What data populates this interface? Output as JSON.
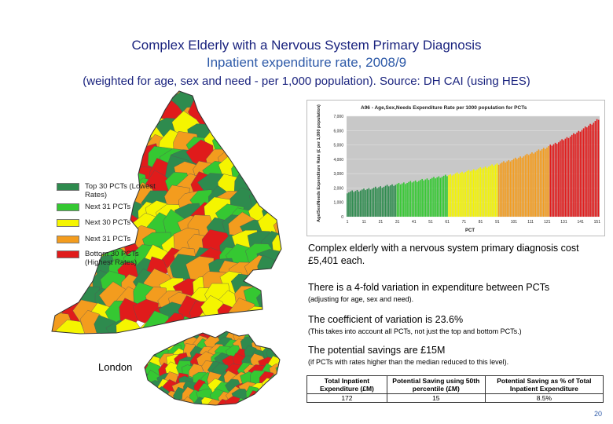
{
  "header": {
    "title": "Complex Elderly with a Nervous System Primary Diagnosis",
    "subtitle": "Inpatient expenditure rate, 2008/9",
    "note": "(weighted for age, sex and need - per 1,000 population). Source: DH CAI (using HES)"
  },
  "legend": {
    "items": [
      {
        "label": "Top 30 PCTs (Lowest Rates)",
        "color": "#2e8b4e"
      },
      {
        "label": "Next 31 PCTs",
        "color": "#35c832"
      },
      {
        "label": "Next 30 PCTs",
        "color": "#f5f500"
      },
      {
        "label": "Next 31 PCTs",
        "color": "#f39c1e"
      },
      {
        "label": "Bottom 30 PCTs (Highest Rates)",
        "color": "#e01b1b"
      }
    ]
  },
  "london_label": "London",
  "chart_data": {
    "type": "bar",
    "title": "A96 - Age,Sex,Needs Expenditure Rate per 1000 population for PCTs",
    "xlabel": "PCT",
    "ylabel": "Age/Sex/Needs Expenditure Rate (£ per 1,000 population)",
    "ylim": [
      0,
      7000
    ],
    "yticks": [
      "0",
      "1,000",
      "2,000",
      "3,000",
      "4,000",
      "5,000",
      "6,000",
      "7,000"
    ],
    "xticks": [
      "1",
      "11",
      "21",
      "31",
      "41",
      "51",
      "61",
      "71",
      "81",
      "91",
      "101",
      "111",
      "121",
      "131",
      "141",
      "151"
    ],
    "n_bars": 152,
    "start_value": 1700,
    "end_value": 6800,
    "colors_by_group": [
      "#2e8b4e",
      "#35c832",
      "#f5f500",
      "#f39c1e",
      "#e01b1b"
    ]
  },
  "text": {
    "cost": "Complex elderly with a nervous system primary diagnosis cost £5,401 each.",
    "variation": "There is a 4-fold variation in expenditure between PCTs",
    "variation_note": "(adjusting for age, sex and need).",
    "cov": "The coefficient of variation is 23.6%",
    "cov_note": "(This takes into account all PCTs, not just the top and bottom PCTs.)",
    "savings": "The potential savings are £15M",
    "savings_note": "(if PCTs with rates higher than the median reduced to this level)."
  },
  "table": {
    "headers": [
      "Total Inpatient Expenditure (£M)",
      "Potential Saving using 50th percentile (£M)",
      "Potential Saving as % of Total Inpatient Expenditure"
    ],
    "row": [
      "172",
      "15",
      "8.5%"
    ]
  },
  "page_number": "20"
}
